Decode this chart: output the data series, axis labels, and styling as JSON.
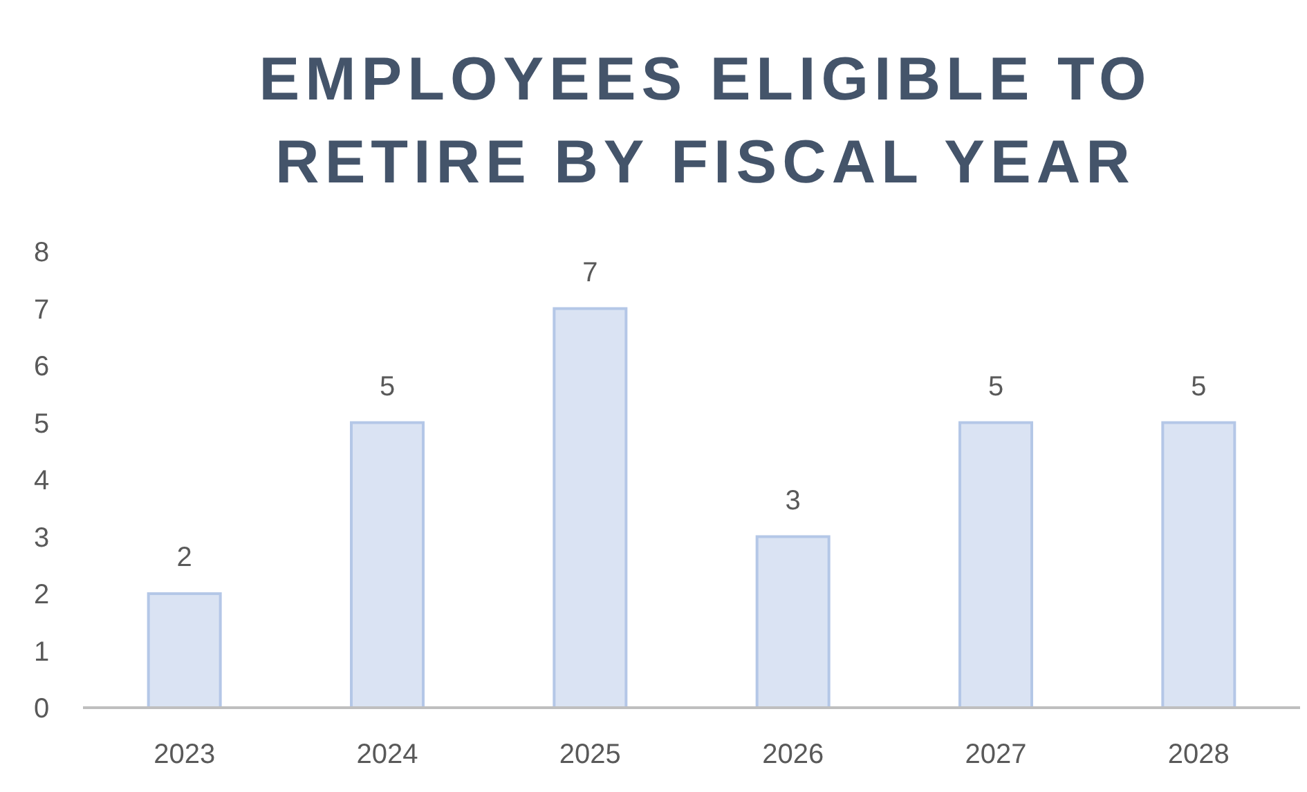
{
  "chart_data": {
    "type": "bar",
    "title": "EMPLOYEES ELIGIBLE TO RETIRE BY FISCAL YEAR",
    "categories": [
      "2023",
      "2024",
      "2025",
      "2026",
      "2027",
      "2028"
    ],
    "values": [
      2,
      5,
      7,
      3,
      5,
      5
    ],
    "color": "#dae3f3",
    "ylim": [
      0,
      8
    ],
    "yticks": [
      0,
      1,
      2,
      3,
      4,
      5,
      6,
      7,
      8
    ],
    "data_labels": true
  }
}
